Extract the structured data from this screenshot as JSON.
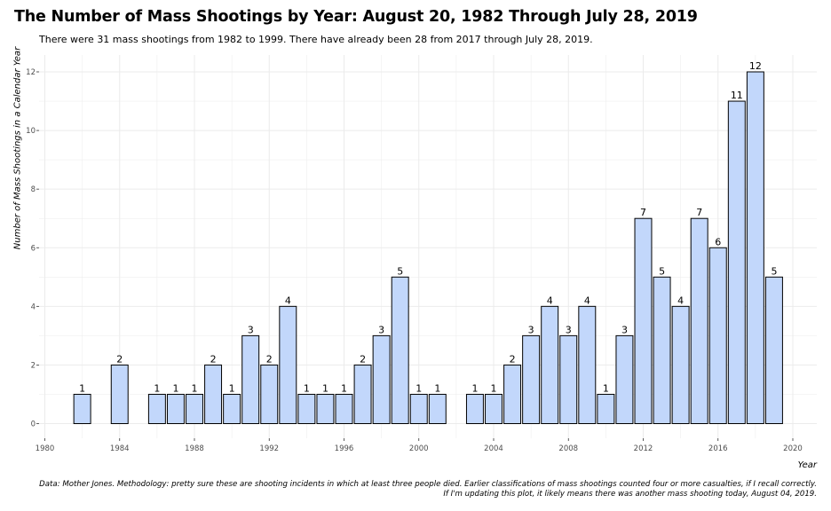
{
  "chart_data": {
    "type": "bar",
    "title": "The Number of Mass Shootings by Year: August 20, 1982 Through July 28, 2019",
    "subtitle": "There were 31 mass shootings from 1982 to 1999. There have already been 28 from 2017 through July 28, 2019.",
    "xlabel": "Year",
    "ylabel": "Number of Mass Shootings in a Calendar Year",
    "caption": [
      "Data: Mother Jones. Methodology: pretty sure these are shooting incidents in which at least three people died. Earlier classifications of mass shootings counted four or more casualties, if I recall correctly.",
      "If I'm updating this plot, it likely means there was another mass shooting today, August 04, 2019."
    ],
    "x": [
      1982,
      1984,
      1986,
      1987,
      1988,
      1989,
      1990,
      1991,
      1992,
      1993,
      1994,
      1995,
      1996,
      1997,
      1998,
      1999,
      2000,
      2001,
      2003,
      2004,
      2005,
      2006,
      2007,
      2008,
      2009,
      2010,
      2011,
      2012,
      2013,
      2014,
      2015,
      2016,
      2017,
      2018,
      2019
    ],
    "values": [
      1,
      2,
      1,
      1,
      1,
      2,
      1,
      3,
      2,
      4,
      1,
      1,
      1,
      2,
      3,
      5,
      1,
      1,
      1,
      1,
      2,
      3,
      4,
      3,
      4,
      1,
      3,
      7,
      5,
      4,
      7,
      6,
      11,
      12,
      5
    ],
    "xlim": [
      1980,
      2021
    ],
    "ylim": [
      0,
      12.5
    ],
    "xticks": [
      1980,
      1984,
      1988,
      1992,
      1996,
      2000,
      2004,
      2008,
      2012,
      2016,
      2020
    ],
    "yticks": [
      0,
      2,
      4,
      6,
      8,
      10,
      12
    ],
    "grid": true,
    "legend": "none",
    "colors": {
      "bar_fill": "#c2d7fb",
      "bar_stroke": "#000000",
      "grid": "#ebebeb",
      "axis_text": "#4d4d4d"
    }
  }
}
